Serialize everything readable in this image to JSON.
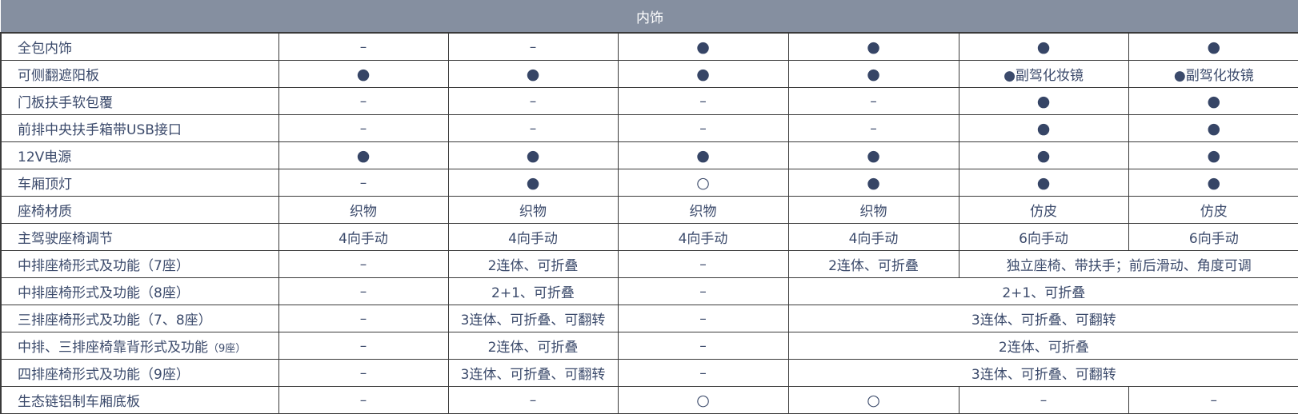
{
  "title": "内饰",
  "rows": [
    {
      "label": "全包内饰",
      "cells": [
        {
          "text": "–"
        },
        {
          "text": "–"
        },
        {
          "text": "●"
        },
        {
          "text": "●"
        },
        {
          "text": "●"
        },
        {
          "text": "●"
        }
      ]
    },
    {
      "label": "可侧翻遮阳板",
      "cells": [
        {
          "text": "●"
        },
        {
          "text": "●"
        },
        {
          "text": "●"
        },
        {
          "text": "●"
        },
        {
          "text": "●副驾化妆镜"
        },
        {
          "text": "●副驾化妆镜"
        }
      ]
    },
    {
      "label": "门板扶手软包覆",
      "cells": [
        {
          "text": "–"
        },
        {
          "text": "–"
        },
        {
          "text": "–"
        },
        {
          "text": "–"
        },
        {
          "text": "●"
        },
        {
          "text": "●"
        }
      ]
    },
    {
      "label": "前排中央扶手箱带USB接口",
      "cells": [
        {
          "text": "–"
        },
        {
          "text": "–"
        },
        {
          "text": "–"
        },
        {
          "text": "–"
        },
        {
          "text": "●"
        },
        {
          "text": "●"
        }
      ]
    },
    {
      "label": "12V电源",
      "cells": [
        {
          "text": "●"
        },
        {
          "text": "●"
        },
        {
          "text": "●"
        },
        {
          "text": "●"
        },
        {
          "text": "●"
        },
        {
          "text": "●"
        }
      ]
    },
    {
      "label": "车厢顶灯",
      "cells": [
        {
          "text": "–"
        },
        {
          "text": "●"
        },
        {
          "text": "○"
        },
        {
          "text": "●"
        },
        {
          "text": "●"
        },
        {
          "text": "●"
        }
      ]
    },
    {
      "label": "座椅材质",
      "cells": [
        {
          "text": "织物"
        },
        {
          "text": "织物"
        },
        {
          "text": "织物"
        },
        {
          "text": "织物"
        },
        {
          "text": "仿皮"
        },
        {
          "text": "仿皮"
        }
      ]
    },
    {
      "label": "主驾驶座椅调节",
      "cells": [
        {
          "text": "4向手动"
        },
        {
          "text": "4向手动"
        },
        {
          "text": "4向手动"
        },
        {
          "text": "4向手动"
        },
        {
          "text": "6向手动"
        },
        {
          "text": "6向手动"
        }
      ]
    },
    {
      "label": "中排座椅形式及功能（7座）",
      "cells": [
        {
          "text": "–"
        },
        {
          "text": "2连体、可折叠"
        },
        {
          "text": "–"
        },
        {
          "text": "2连体、可折叠"
        },
        {
          "text": "独立座椅、带扶手；前后滑动、角度可调",
          "span": 2
        }
      ]
    },
    {
      "label": "中排座椅形式及功能（8座）",
      "cells": [
        {
          "text": "–"
        },
        {
          "text": "2+1、可折叠"
        },
        {
          "text": "–"
        },
        {
          "text": "2+1、可折叠",
          "span": 3
        }
      ]
    },
    {
      "label": "三排座椅形式及功能（7、8座）",
      "cells": [
        {
          "text": "–"
        },
        {
          "text": "3连体、可折叠、可翻转"
        },
        {
          "text": "–"
        },
        {
          "text": "3连体、可折叠、可翻转",
          "span": 3
        }
      ]
    },
    {
      "label": "中排、三排座椅靠背形式及功能",
      "label_suffix": "（9座）",
      "cells": [
        {
          "text": "–"
        },
        {
          "text": "2连体、可折叠"
        },
        {
          "text": "–"
        },
        {
          "text": "2连体、可折叠",
          "span": 3
        }
      ]
    },
    {
      "label": "四排座椅形式及功能（9座）",
      "cells": [
        {
          "text": "–"
        },
        {
          "text": "3连体、可折叠、可翻转"
        },
        {
          "text": "–"
        },
        {
          "text": "3连体、可折叠、可翻转",
          "span": 3
        }
      ]
    },
    {
      "label": "生态链铝制车厢底板",
      "cells": [
        {
          "text": "–"
        },
        {
          "text": "–"
        },
        {
          "text": "○"
        },
        {
          "text": "○"
        },
        {
          "text": "–"
        },
        {
          "text": "–"
        }
      ]
    }
  ]
}
